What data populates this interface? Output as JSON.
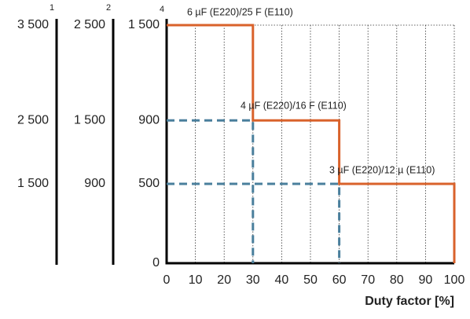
{
  "chart_data": {
    "type": "line",
    "xlabel": "Duty factor [%]",
    "xlim": [
      0,
      100
    ],
    "xticks": [
      0,
      10,
      20,
      30,
      40,
      50,
      60,
      70,
      80,
      90,
      100
    ],
    "ylim": [
      0,
      1500
    ],
    "yticks": [
      0,
      500,
      900,
      {
        "value": 1500,
        "label": "1 500"
      }
    ],
    "y_axis_name": "4",
    "aux_axes": [
      {
        "name": "1",
        "ticks": [
          {
            "value": 1500,
            "label": "1 500"
          },
          {
            "value": 2500,
            "label": "2 500"
          },
          {
            "value": 3500,
            "label": "3 500"
          }
        ]
      },
      {
        "name": "2",
        "ticks": [
          900,
          {
            "value": 1500,
            "label": "1 500"
          },
          {
            "value": 2500,
            "label": "2 500"
          }
        ]
      }
    ],
    "grid": true,
    "series": [
      {
        "color": "#d9622b",
        "style": "solid",
        "x": [
          0,
          30,
          30,
          60,
          60,
          100,
          100
        ],
        "values": [
          1500,
          1500,
          900,
          900,
          500,
          500,
          0
        ]
      },
      {
        "color": "#4a7f9c",
        "style": "dashed",
        "x": [
          0,
          30,
          30
        ],
        "values": [
          900,
          900,
          0
        ]
      },
      {
        "color": "#4a7f9c",
        "style": "dashed",
        "x": [
          0,
          60,
          60
        ],
        "values": [
          500,
          500,
          0
        ]
      }
    ],
    "annotations": [
      "6 µF (E220)/25 F (E110)",
      "4 µF (E220)/16 F (E110)",
      "3 µF (E220)/12 µ (E110)"
    ]
  }
}
